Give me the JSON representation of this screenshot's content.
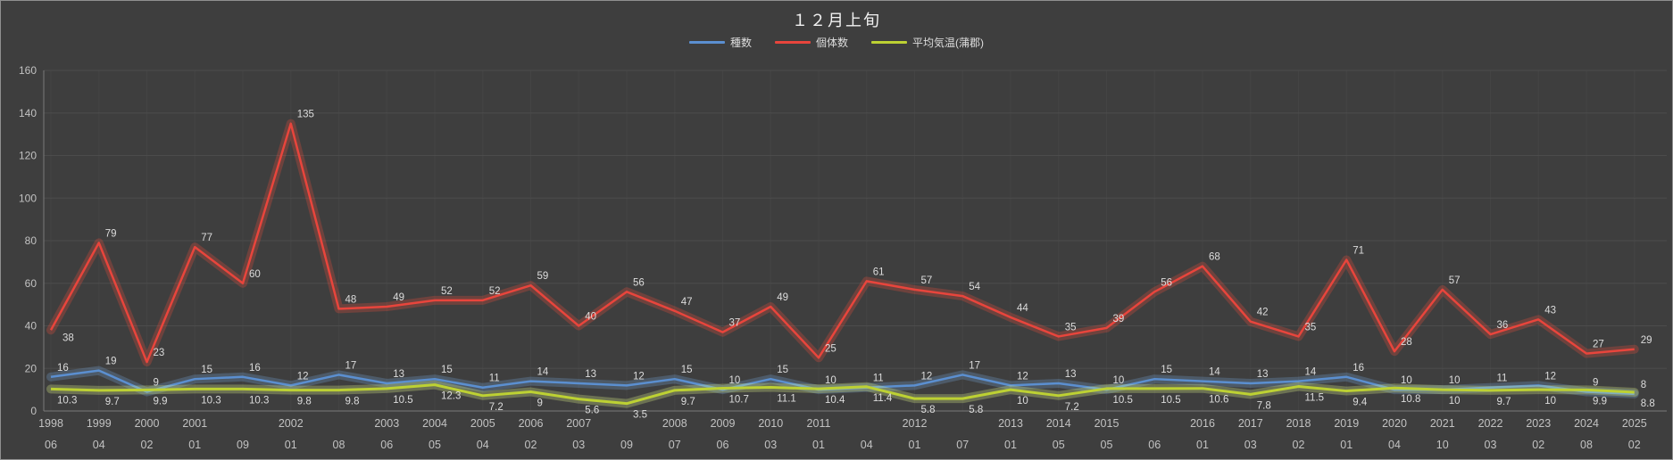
{
  "chart_data": {
    "type": "line",
    "title": "１２月上旬",
    "legend_position": "top-center",
    "grid": true,
    "ylim": [
      0,
      160
    ],
    "ytick_step": 20,
    "y_ticks": [
      0,
      20,
      40,
      60,
      80,
      100,
      120,
      140,
      160
    ],
    "x_labels": [
      {
        "year": "1998",
        "day": "06"
      },
      {
        "year": "1999",
        "day": "04"
      },
      {
        "year": "2000",
        "day": "02"
      },
      {
        "year": "2001",
        "day": "01"
      },
      {
        "year": "",
        "day": "09"
      },
      {
        "year": "2002",
        "day": "01"
      },
      {
        "year": "",
        "day": "08"
      },
      {
        "year": "2003",
        "day": "06"
      },
      {
        "year": "2004",
        "day": "05"
      },
      {
        "year": "2005",
        "day": "04"
      },
      {
        "year": "2006",
        "day": "02"
      },
      {
        "year": "2007",
        "day": "03"
      },
      {
        "year": "",
        "day": "09"
      },
      {
        "year": "2008",
        "day": "07"
      },
      {
        "year": "2009",
        "day": "06"
      },
      {
        "year": "2010",
        "day": "03"
      },
      {
        "year": "2011",
        "day": "01"
      },
      {
        "year": "",
        "day": "04"
      },
      {
        "year": "2012",
        "day": "01"
      },
      {
        "year": "",
        "day": "07"
      },
      {
        "year": "2013",
        "day": "01"
      },
      {
        "year": "2014",
        "day": "05"
      },
      {
        "year": "2015",
        "day": "05"
      },
      {
        "year": "",
        "day": "06"
      },
      {
        "year": "2016",
        "day": "01"
      },
      {
        "year": "2017",
        "day": "03"
      },
      {
        "year": "2018",
        "day": "02"
      },
      {
        "year": "2019",
        "day": "01"
      },
      {
        "year": "2020",
        "day": "04"
      },
      {
        "year": "2021",
        "day": "10"
      },
      {
        "year": "2022",
        "day": "03"
      },
      {
        "year": "2023",
        "day": "02"
      },
      {
        "year": "2024",
        "day": "08"
      },
      {
        "year": "2025",
        "day": "02"
      }
    ],
    "series": [
      {
        "name": "種数",
        "color": "#5b8fd0",
        "glow": "rgba(130,190,255,0.22)",
        "label_position": "above",
        "values": [
          16,
          19,
          9,
          15,
          16,
          12,
          17,
          13,
          15,
          11,
          14,
          13,
          12,
          15,
          10,
          15,
          10,
          11,
          12,
          17,
          12,
          13,
          10,
          15,
          14,
          13,
          14,
          16,
          10,
          10,
          11,
          12,
          9,
          8
        ]
      },
      {
        "name": "個体数",
        "color": "#e8453c",
        "glow": "rgba(255,80,60,0.25)",
        "label_position": "above",
        "values": [
          38,
          79,
          23,
          77,
          60,
          135,
          48,
          49,
          52,
          52,
          59,
          40,
          56,
          47,
          37,
          49,
          25,
          61,
          57,
          54,
          44,
          35,
          39,
          56,
          68,
          42,
          35,
          71,
          28,
          57,
          36,
          43,
          27,
          29
        ]
      },
      {
        "name": "平均気温(蒲郡)",
        "color": "#bdd133",
        "glow": "rgba(230,250,140,0.28)",
        "label_position": "below",
        "values": [
          10.3,
          9.7,
          9.9,
          10.3,
          10.3,
          9.8,
          9.8,
          10.5,
          12.3,
          7.2,
          9,
          5.6,
          3.5,
          9.7,
          10.7,
          11.1,
          10.4,
          11.4,
          5.8,
          5.8,
          10,
          7.2,
          10.5,
          10.5,
          10.6,
          7.8,
          11.5,
          9.4,
          10.8,
          10,
          9.7,
          10,
          9.9,
          8.8
        ]
      }
    ],
    "colors": {
      "background": "#3e3e3e",
      "gridline": "#4c4c4c",
      "vertical_gridline": "#444444",
      "axis_line": "#7a7a7a",
      "tick_text": "#c2c2c2",
      "data_label_text": "#dcdcdc"
    }
  }
}
